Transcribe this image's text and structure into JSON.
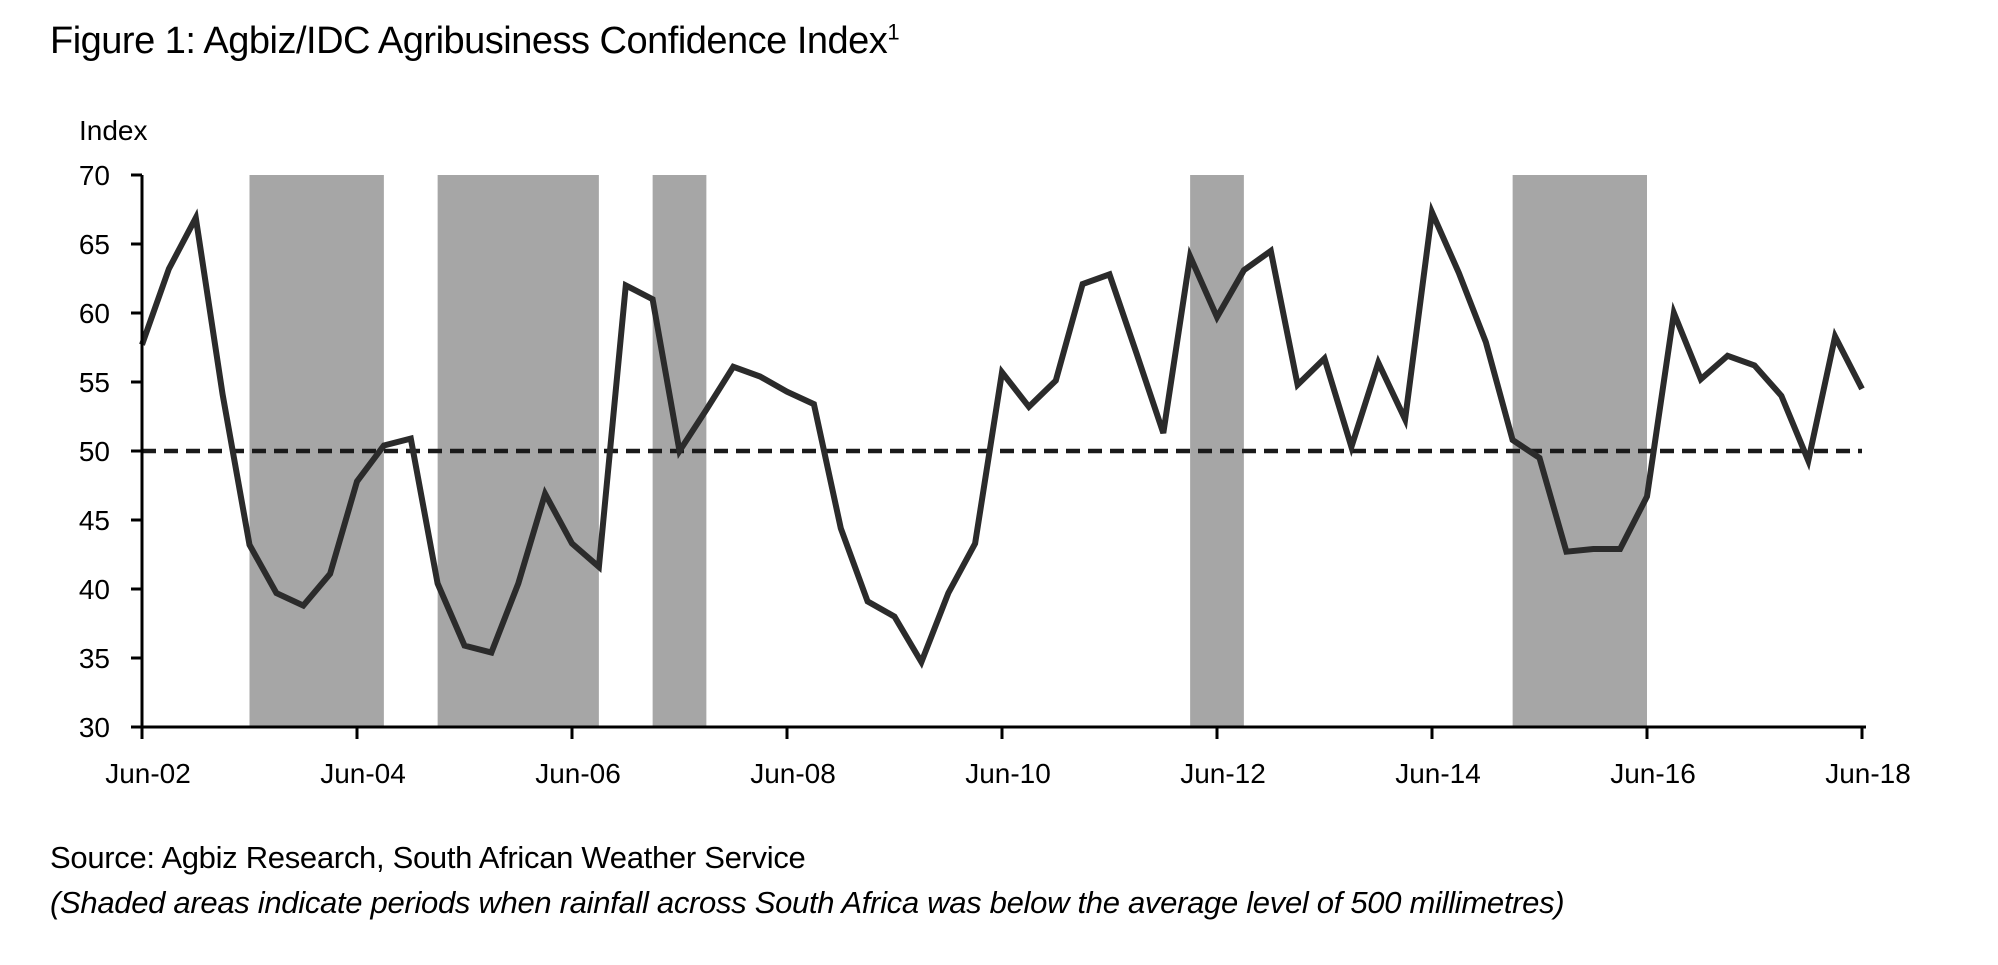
{
  "title": {
    "text": "Figure 1: Agbiz/IDC Agribusiness Confidence Index",
    "superscript": "1"
  },
  "footer": {
    "source": "Source: Agbiz Research, South African Weather Service",
    "note": "(Shaded areas indicate periods when rainfall across South Africa was below the average level of 500 millimetres)"
  },
  "colors": {
    "line": "#2b2b2b",
    "shade": "#a6a6a6",
    "axis": "#000000",
    "reference": "#1a1a1a"
  },
  "chart_data": {
    "type": "line",
    "title": "Figure 1: Agbiz/IDC Agribusiness Confidence Index",
    "ylabel": "Index",
    "xlabel": "",
    "ylim": [
      30,
      70
    ],
    "yticks": [
      30,
      35,
      40,
      45,
      50,
      55,
      60,
      65,
      70
    ],
    "frequency": "quarterly",
    "x_start": "Jun-02",
    "x_end": "Jun-18",
    "xticks": [
      "Jun-02",
      "Jun-04",
      "Jun-06",
      "Jun-08",
      "Jun-10",
      "Jun-12",
      "Jun-14",
      "Jun-16",
      "Jun-18"
    ],
    "xtick_step_quarters": 8,
    "grid": false,
    "legend": "none",
    "reference_line": {
      "value": 50,
      "style": "dashed"
    },
    "shaded_periods": [
      {
        "start": "Jun-03",
        "end": "Sep-04",
        "start_q": 4,
        "end_q": 9
      },
      {
        "start": "Mar-05",
        "end": "Sep-06",
        "start_q": 11,
        "end_q": 17
      },
      {
        "start": "Mar-07",
        "end": "Sep-07",
        "start_q": 19,
        "end_q": 21
      },
      {
        "start": "Mar-12",
        "end": "Sep-12",
        "start_q": 39,
        "end_q": 41
      },
      {
        "start": "Mar-15",
        "end": "Jun-16",
        "start_q": 51,
        "end_q": 56
      }
    ],
    "series": [
      {
        "name": "Agbiz/IDC Agribusiness Confidence Index",
        "values": [
          57.7,
          63.2,
          66.9,
          54.1,
          43.2,
          39.7,
          38.8,
          41.1,
          47.8,
          50.4,
          50.9,
          40.4,
          35.9,
          35.4,
          40.4,
          46.9,
          43.3,
          41.6,
          62.0,
          61.0,
          50.0,
          53.0,
          56.1,
          55.4,
          54.3,
          53.4,
          44.4,
          39.1,
          38.0,
          34.7,
          39.7,
          43.3,
          55.7,
          53.2,
          55.1,
          62.1,
          62.8,
          57.1,
          51.3,
          64.1,
          59.7,
          63.1,
          64.5,
          54.8,
          56.7,
          50.3,
          56.4,
          52.3,
          67.3,
          62.9,
          57.9,
          50.8,
          49.5,
          42.7,
          42.9,
          42.9,
          46.7,
          60.0,
          55.2,
          56.9,
          56.2,
          54.0,
          49.3,
          58.3,
          54.5
        ]
      }
    ]
  }
}
